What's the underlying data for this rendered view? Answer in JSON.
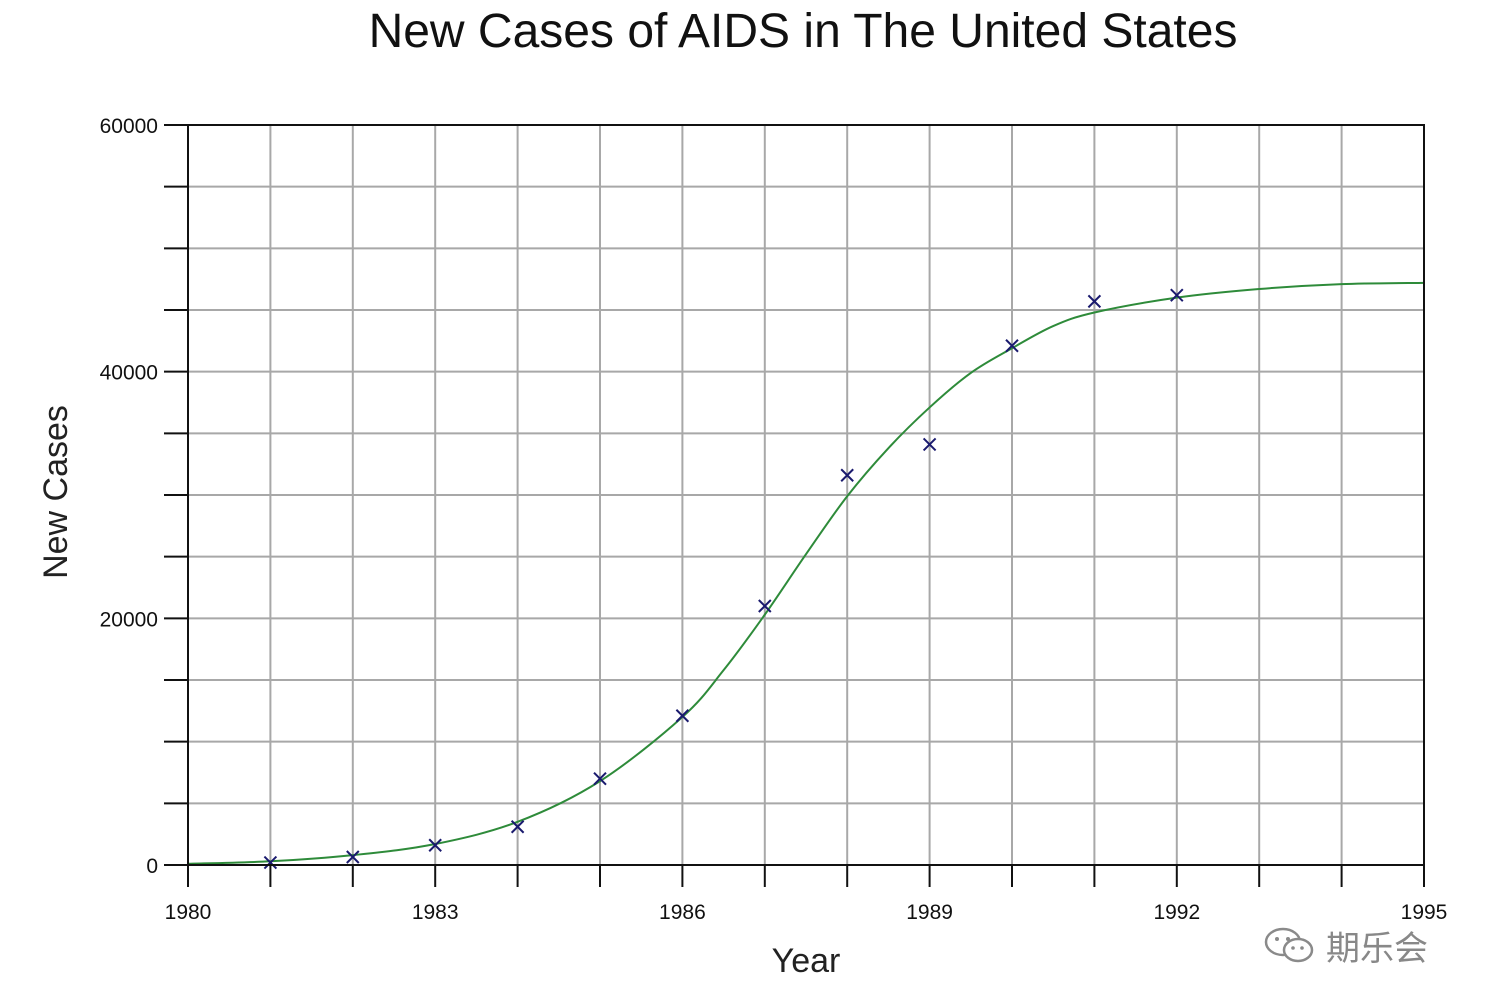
{
  "chart_data": {
    "type": "scatter",
    "title": "New Cases of AIDS in The United States",
    "xlabel": "Year",
    "ylabel": "New Cases",
    "xlim": [
      1980,
      1995
    ],
    "ylim": [
      0,
      60000
    ],
    "x_ticks": [
      1980,
      1983,
      1986,
      1989,
      1992,
      1995
    ],
    "y_ticks": [
      0,
      20000,
      40000,
      60000
    ],
    "x_grid_step": 1,
    "y_grid_step": 5000,
    "grid": true,
    "series": [
      {
        "kind": "points",
        "marker": "x",
        "color": "#1a1a6e",
        "x": [
          1981,
          1982,
          1983,
          1984,
          1985,
          1986,
          1987,
          1988,
          1989,
          1990,
          1991,
          1992
        ],
        "y": [
          200,
          650,
          1600,
          3100,
          7000,
          12100,
          21000,
          31600,
          34100,
          42100,
          45700,
          46200
        ]
      },
      {
        "kind": "fitted-curve",
        "color": "#2e8b3a",
        "x": [
          1980,
          1981,
          1982,
          1983,
          1984,
          1985,
          1986,
          1986.5,
          1987,
          1987.5,
          1988,
          1988.5,
          1989,
          1989.5,
          1990,
          1990.5,
          1991,
          1992,
          1993,
          1994,
          1995
        ],
        "y": [
          100,
          300,
          800,
          1700,
          3500,
          6800,
          12000,
          15800,
          20300,
          25200,
          29900,
          33800,
          37100,
          39900,
          41900,
          43700,
          44800,
          46000,
          46700,
          47100,
          47200
        ]
      }
    ]
  },
  "watermark": {
    "text": "期乐会",
    "icon": "wechat-icon"
  }
}
